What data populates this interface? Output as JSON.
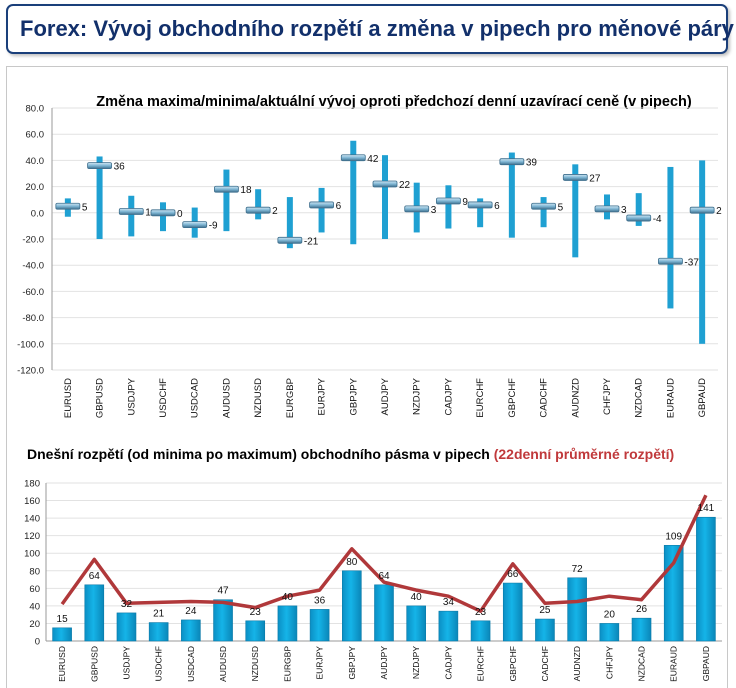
{
  "header": {
    "title": "Forex: Vývoj obchodního rozpětí a změna v pipech pro měnové páry"
  },
  "chart_data": [
    {
      "type": "range",
      "title": "Změna maxima/minima/aktuální vývoj oproti předchozí denní uzavírací ceně (v pipech)",
      "ylim": [
        -120,
        80
      ],
      "yticks": [
        "80.0",
        "60.0",
        "40.0",
        "20.0",
        "0.0",
        "-20.0",
        "-40.0",
        "-60.0",
        "-80.0",
        "-100.0",
        "-120.0"
      ],
      "categories": [
        "EURUSD",
        "GBPUSD",
        "USDJPY",
        "USDCHF",
        "USDCAD",
        "AUDUSD",
        "NZDUSD",
        "EURGBP",
        "EURJPY",
        "GBPJPY",
        "AUDJPY",
        "NZDJPY",
        "CADJPY",
        "EURCHF",
        "GBPCHF",
        "CADCHF",
        "AUDNZD",
        "CHFJPY",
        "NZDCAD",
        "EURAUD",
        "GBPAUD"
      ],
      "high": [
        11,
        43,
        13,
        8,
        4,
        33,
        18,
        12,
        19,
        55,
        44,
        23,
        21,
        11,
        46,
        12,
        37,
        14,
        15,
        35,
        40
      ],
      "low": [
        -3,
        -20,
        -18,
        -14,
        -19,
        -14,
        -5,
        -27,
        -15,
        -24,
        -20,
        -15,
        -12,
        -11,
        -19,
        -11,
        -34,
        -5,
        -10,
        -73,
        -100
      ],
      "current": [
        5,
        36,
        1,
        0,
        -9,
        18,
        2,
        -21,
        6,
        42,
        22,
        3,
        9,
        6,
        39,
        5,
        27,
        3,
        -4,
        -37,
        2
      ],
      "labels": [
        "5",
        "36",
        "1",
        "0",
        "-9",
        "18",
        "2",
        "-21",
        "6",
        "42",
        "22",
        "3",
        "9",
        "6",
        "39",
        "5",
        "27",
        "3",
        "-4",
        "-37",
        "2"
      ],
      "grid": true,
      "colors": {
        "range": "#1fa0d2",
        "marker": "#7fb6d4",
        "marker_edge": "#3f6f8d"
      }
    },
    {
      "type": "bar+line",
      "title": "Dnešní rozpětí (od minima po maximum) obchodního pásma v pipech",
      "title_suffix": "(22denní průměrné rozpětí)",
      "ylim": [
        0,
        180
      ],
      "yticks": [
        "180",
        "160",
        "140",
        "120",
        "100",
        "80",
        "60",
        "40",
        "20",
        "0"
      ],
      "categories": [
        "EURUSD",
        "GBPUSD",
        "USDJPY",
        "USDCHF",
        "USDCAD",
        "AUDUSD",
        "NZDUSD",
        "EURGBP",
        "EURJPY",
        "GBPJPY",
        "AUDJPY",
        "NZDJPY",
        "CADJPY",
        "EURCHF",
        "GBPCHF",
        "CADCHF",
        "AUDNZD",
        "CHFJPY",
        "NZDCAD",
        "EURAUD",
        "GBPAUD"
      ],
      "series": [
        {
          "type": "bar",
          "values": [
            15,
            64,
            32,
            21,
            24,
            47,
            23,
            40,
            36,
            80,
            64,
            40,
            34,
            23,
            66,
            25,
            72,
            20,
            26,
            109,
            141
          ],
          "labels": [
            "15",
            "64",
            "32",
            "21",
            "24",
            "47",
            "23",
            "40",
            "36",
            "80",
            "64",
            "40",
            "34",
            "23",
            "66",
            "25",
            "72",
            "20",
            "26",
            "109",
            "141"
          ]
        },
        {
          "type": "line",
          "values": [
            42,
            93,
            43,
            44,
            45,
            44,
            38,
            51,
            58,
            105,
            67,
            58,
            51,
            34,
            88,
            43,
            45,
            51,
            47,
            89,
            166
          ]
        }
      ],
      "grid": true,
      "colors": {
        "bar": "#0aa2d8",
        "line": "#b0383a",
        "suffix": "#c0393b"
      }
    }
  ]
}
